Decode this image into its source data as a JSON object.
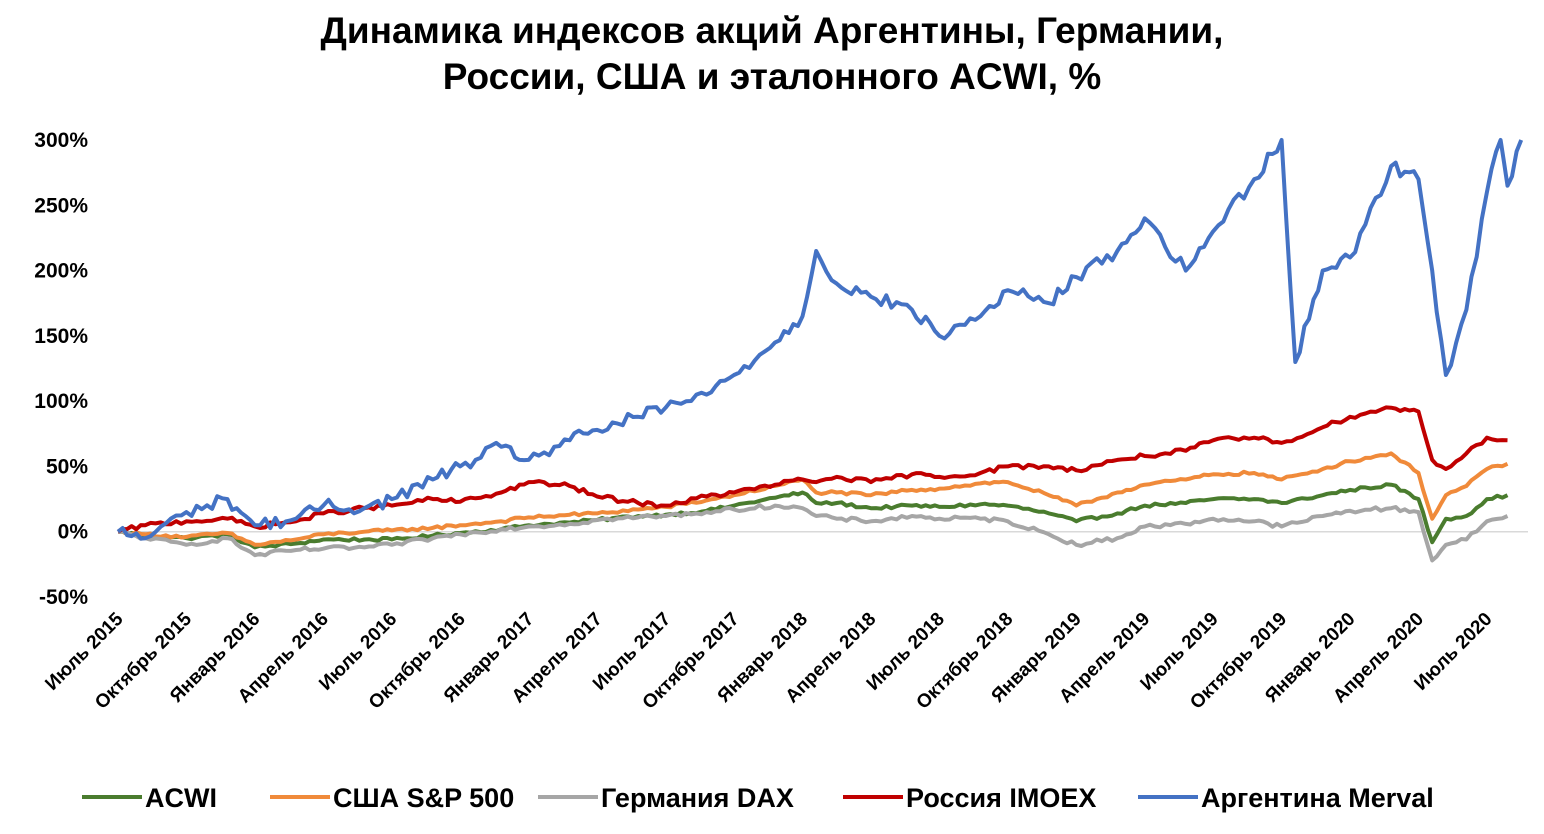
{
  "chart_data": {
    "type": "line",
    "title": [
      "Динамика индексов акций Аргентины, Германии,",
      "России, США и эталонного ACWI, %"
    ],
    "xlabel": "",
    "ylabel": "",
    "ylim": [
      -50,
      300
    ],
    "yticks": [
      300,
      250,
      200,
      150,
      100,
      50,
      0,
      -50
    ],
    "ytick_labels": [
      "300%",
      "250%",
      "200%",
      "150%",
      "100%",
      "50%",
      "0%",
      "-50%"
    ],
    "xlim": [
      0,
      20
    ],
    "x_tick_labels": [
      "Июль 2015",
      "Октябрь 2015",
      "Январь 2016",
      "Апрель 2016",
      "Июль 2016",
      "Октябрь 2016",
      "Январь 2017",
      "Апрель 2017",
      "Июль 2017",
      "Октябрь 2017",
      "Январь 2018",
      "Апрель 2018",
      "Июль 2018",
      "Октябрь 2018",
      "Январь 2019",
      "Апрель 2019",
      "Июль 2019",
      "Октябрь 2019",
      "Январь 2020",
      "Апрель 2020",
      "Июль 2020"
    ],
    "legend_position": "bottom",
    "grid": false,
    "series": [
      {
        "name": "ACWI",
        "color": "#4a7c2e",
        "points": [
          [
            0,
            0
          ],
          [
            0.4,
            -3
          ],
          [
            1,
            -5
          ],
          [
            1.6,
            -2
          ],
          [
            2,
            -12
          ],
          [
            2.6,
            -9
          ],
          [
            3,
            -6
          ],
          [
            3.6,
            -6
          ],
          [
            4,
            -6
          ],
          [
            4.6,
            -3
          ],
          [
            5,
            -1
          ],
          [
            5.6,
            2
          ],
          [
            6,
            5
          ],
          [
            6.6,
            7
          ],
          [
            7,
            9
          ],
          [
            7.6,
            12
          ],
          [
            8,
            13
          ],
          [
            8.6,
            16
          ],
          [
            9,
            20
          ],
          [
            9.6,
            26
          ],
          [
            10,
            30
          ],
          [
            10.2,
            22
          ],
          [
            10.5,
            22
          ],
          [
            11,
            18
          ],
          [
            11.6,
            20
          ],
          [
            12,
            19
          ],
          [
            12.6,
            21
          ],
          [
            13,
            20
          ],
          [
            13.6,
            14
          ],
          [
            14,
            8
          ],
          [
            14.6,
            14
          ],
          [
            15,
            20
          ],
          [
            15.6,
            22
          ],
          [
            16,
            25
          ],
          [
            16.6,
            25
          ],
          [
            17,
            22
          ],
          [
            17.6,
            28
          ],
          [
            18,
            32
          ],
          [
            18.6,
            36
          ],
          [
            19,
            25
          ],
          [
            19.2,
            -8
          ],
          [
            19.4,
            10
          ],
          [
            19.7,
            12
          ],
          [
            20,
            25
          ],
          [
            20.3,
            28
          ]
        ]
      },
      {
        "name": "США S&P 500",
        "color": "#f08a3a",
        "points": [
          [
            0,
            0
          ],
          [
            0.4,
            -2
          ],
          [
            1,
            -4
          ],
          [
            1.6,
            -1
          ],
          [
            2,
            -10
          ],
          [
            2.6,
            -6
          ],
          [
            3,
            -2
          ],
          [
            3.6,
            0
          ],
          [
            4,
            1
          ],
          [
            4.6,
            3
          ],
          [
            5,
            5
          ],
          [
            5.6,
            8
          ],
          [
            6,
            11
          ],
          [
            6.6,
            13
          ],
          [
            7,
            14
          ],
          [
            7.6,
            17
          ],
          [
            8,
            19
          ],
          [
            8.6,
            24
          ],
          [
            9,
            28
          ],
          [
            9.6,
            35
          ],
          [
            10,
            40
          ],
          [
            10.2,
            30
          ],
          [
            10.5,
            30
          ],
          [
            11,
            28
          ],
          [
            11.6,
            32
          ],
          [
            12,
            33
          ],
          [
            12.6,
            37
          ],
          [
            13,
            38
          ],
          [
            13.6,
            28
          ],
          [
            14,
            20
          ],
          [
            14.6,
            30
          ],
          [
            15,
            36
          ],
          [
            15.6,
            40
          ],
          [
            16,
            44
          ],
          [
            16.6,
            45
          ],
          [
            17,
            40
          ],
          [
            17.6,
            48
          ],
          [
            18,
            54
          ],
          [
            18.6,
            60
          ],
          [
            19,
            45
          ],
          [
            19.2,
            10
          ],
          [
            19.4,
            28
          ],
          [
            19.7,
            35
          ],
          [
            20,
            48
          ],
          [
            20.3,
            52
          ]
        ]
      },
      {
        "name": "Германия DAX",
        "color": "#a6a6a6",
        "points": [
          [
            0,
            0
          ],
          [
            0.4,
            -5
          ],
          [
            1,
            -10
          ],
          [
            1.6,
            -5
          ],
          [
            2,
            -18
          ],
          [
            2.6,
            -14
          ],
          [
            3,
            -13
          ],
          [
            3.6,
            -12
          ],
          [
            4,
            -10
          ],
          [
            4.6,
            -5
          ],
          [
            5,
            -2
          ],
          [
            5.6,
            2
          ],
          [
            6,
            4
          ],
          [
            6.6,
            6
          ],
          [
            7,
            9
          ],
          [
            7.6,
            11
          ],
          [
            8,
            12
          ],
          [
            8.6,
            15
          ],
          [
            9,
            17
          ],
          [
            9.6,
            20
          ],
          [
            10,
            18
          ],
          [
            10.2,
            12
          ],
          [
            10.5,
            10
          ],
          [
            11,
            8
          ],
          [
            11.6,
            12
          ],
          [
            12,
            10
          ],
          [
            12.6,
            10
          ],
          [
            13,
            8
          ],
          [
            13.6,
            -2
          ],
          [
            14,
            -10
          ],
          [
            14.6,
            -5
          ],
          [
            15,
            4
          ],
          [
            15.6,
            6
          ],
          [
            16,
            10
          ],
          [
            16.6,
            8
          ],
          [
            17,
            4
          ],
          [
            17.6,
            12
          ],
          [
            18,
            16
          ],
          [
            18.6,
            18
          ],
          [
            19,
            15
          ],
          [
            19.2,
            -22
          ],
          [
            19.4,
            -10
          ],
          [
            19.7,
            -6
          ],
          [
            20,
            8
          ],
          [
            20.3,
            12
          ]
        ]
      },
      {
        "name": "Россия IMOEX",
        "color": "#c00000",
        "points": [
          [
            0,
            0
          ],
          [
            0.4,
            5
          ],
          [
            1,
            8
          ],
          [
            1.6,
            10
          ],
          [
            2,
            4
          ],
          [
            2.6,
            8
          ],
          [
            3,
            14
          ],
          [
            3.6,
            18
          ],
          [
            4,
            20
          ],
          [
            4.6,
            25
          ],
          [
            5,
            23
          ],
          [
            5.6,
            30
          ],
          [
            6,
            38
          ],
          [
            6.6,
            35
          ],
          [
            7,
            27
          ],
          [
            7.6,
            22
          ],
          [
            8,
            20
          ],
          [
            8.6,
            27
          ],
          [
            9,
            30
          ],
          [
            9.6,
            36
          ],
          [
            10,
            40
          ],
          [
            10.2,
            38
          ],
          [
            10.5,
            42
          ],
          [
            11,
            38
          ],
          [
            11.6,
            44
          ],
          [
            12,
            42
          ],
          [
            12.6,
            45
          ],
          [
            13,
            50
          ],
          [
            13.6,
            50
          ],
          [
            14,
            47
          ],
          [
            14.6,
            55
          ],
          [
            15,
            58
          ],
          [
            15.6,
            62
          ],
          [
            16,
            70
          ],
          [
            16.6,
            72
          ],
          [
            17,
            68
          ],
          [
            17.6,
            80
          ],
          [
            18,
            88
          ],
          [
            18.6,
            95
          ],
          [
            19,
            92
          ],
          [
            19.2,
            55
          ],
          [
            19.4,
            48
          ],
          [
            19.7,
            60
          ],
          [
            20,
            72
          ],
          [
            20.3,
            70
          ]
        ]
      },
      {
        "name": "Аргентина Merval",
        "color": "#4472c4",
        "points": [
          [
            0,
            0
          ],
          [
            0.4,
            -5
          ],
          [
            1,
            15
          ],
          [
            1.6,
            25
          ],
          [
            2,
            5
          ],
          [
            2.6,
            10
          ],
          [
            3,
            20
          ],
          [
            3.6,
            18
          ],
          [
            4,
            25
          ],
          [
            4.6,
            40
          ],
          [
            5,
            50
          ],
          [
            5.6,
            65
          ],
          [
            6,
            55
          ],
          [
            6.6,
            70
          ],
          [
            7,
            78
          ],
          [
            7.6,
            88
          ],
          [
            8,
            95
          ],
          [
            8.6,
            105
          ],
          [
            9,
            120
          ],
          [
            9.6,
            145
          ],
          [
            10,
            165
          ],
          [
            10.2,
            215
          ],
          [
            10.5,
            190
          ],
          [
            11,
            180
          ],
          [
            11.6,
            170
          ],
          [
            12,
            150
          ],
          [
            12.6,
            165
          ],
          [
            13,
            185
          ],
          [
            13.6,
            175
          ],
          [
            14,
            195
          ],
          [
            14.6,
            215
          ],
          [
            15,
            240
          ],
          [
            15.6,
            200
          ],
          [
            16,
            230
          ],
          [
            16.6,
            270
          ],
          [
            17,
            300
          ],
          [
            17.2,
            130
          ],
          [
            17.6,
            200
          ],
          [
            18,
            210
          ],
          [
            18.6,
            280
          ],
          [
            19,
            270
          ],
          [
            19.2,
            200
          ],
          [
            19.4,
            120
          ],
          [
            19.7,
            170
          ],
          [
            20,
            260
          ],
          [
            20.2,
            300
          ],
          [
            20.3,
            265
          ],
          [
            20.5,
            300
          ]
        ]
      }
    ]
  }
}
